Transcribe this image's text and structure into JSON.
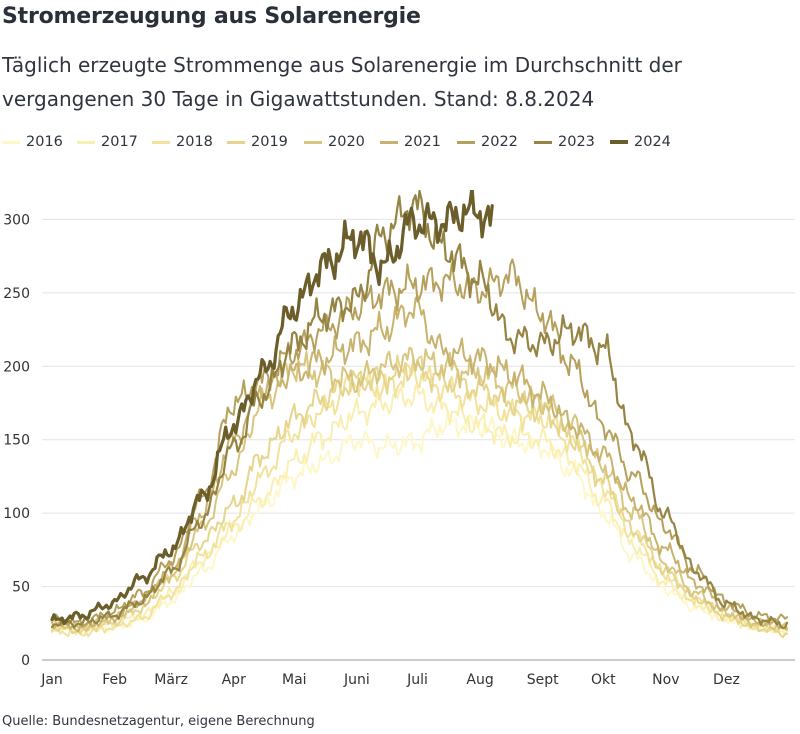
{
  "header": {
    "title": "Stromerzeugung aus Solarenergie",
    "subtitle": "Täglich erzeugte Strommenge aus Solarenergie im Durchschnitt der vergangenen 30 Tage in Gigawattstunden. Stand: 8.8.2024"
  },
  "footer": {
    "source": "Quelle: Bundesnetzagentur, eigene Berechnung"
  },
  "chart_data": {
    "type": "line",
    "title": "Stromerzeugung aus Solarenergie",
    "subtitle": "Täglich erzeugte Strommenge aus Solarenergie im Durchschnitt der vergangenen 30 Tage in Gigawattstunden. Stand: 8.8.2024",
    "xlabel": "",
    "ylabel": "",
    "xlim": [
      1,
      365
    ],
    "ylim": [
      0,
      320
    ],
    "yticks": [
      0,
      50,
      100,
      150,
      200,
      250,
      300
    ],
    "x_ticks": [
      {
        "label": "Jan",
        "day": 1
      },
      {
        "label": "Feb",
        "day": 32
      },
      {
        "label": "März",
        "day": 60
      },
      {
        "label": "Apr",
        "day": 91
      },
      {
        "label": "Mai",
        "day": 121
      },
      {
        "label": "Juni",
        "day": 152
      },
      {
        "label": "Juli",
        "day": 182
      },
      {
        "label": "Aug",
        "day": 213
      },
      {
        "label": "Sept",
        "day": 244
      },
      {
        "label": "Okt",
        "day": 274
      },
      {
        "label": "Nov",
        "day": 305
      },
      {
        "label": "Dez",
        "day": 335
      }
    ],
    "grid": "horizontal",
    "legend_position": "top",
    "x_unit": "day of year",
    "series": [
      {
        "name": "2016",
        "color": "#fdf7c9",
        "width": 2,
        "points": [
          [
            1,
            25
          ],
          [
            15,
            20
          ],
          [
            30,
            22
          ],
          [
            45,
            27
          ],
          [
            60,
            40
          ],
          [
            75,
            60
          ],
          [
            91,
            85
          ],
          [
            105,
            105
          ],
          [
            121,
            125
          ],
          [
            135,
            135
          ],
          [
            152,
            150
          ],
          [
            165,
            145
          ],
          [
            180,
            148
          ],
          [
            195,
            160
          ],
          [
            213,
            160
          ],
          [
            228,
            150
          ],
          [
            244,
            145
          ],
          [
            259,
            128
          ],
          [
            274,
            100
          ],
          [
            289,
            70
          ],
          [
            305,
            48
          ],
          [
            320,
            35
          ],
          [
            335,
            28
          ],
          [
            350,
            22
          ],
          [
            365,
            20
          ]
        ]
      },
      {
        "name": "2017",
        "color": "#faefb2",
        "width": 2,
        "points": [
          [
            1,
            22
          ],
          [
            15,
            20
          ],
          [
            30,
            24
          ],
          [
            45,
            30
          ],
          [
            60,
            45
          ],
          [
            75,
            68
          ],
          [
            91,
            90
          ],
          [
            105,
            110
          ],
          [
            121,
            135
          ],
          [
            135,
            152
          ],
          [
            152,
            168
          ],
          [
            165,
            175
          ],
          [
            180,
            180
          ],
          [
            195,
            172
          ],
          [
            213,
            160
          ],
          [
            228,
            152
          ],
          [
            244,
            150
          ],
          [
            259,
            135
          ],
          [
            274,
            108
          ],
          [
            289,
            78
          ],
          [
            305,
            52
          ],
          [
            320,
            38
          ],
          [
            335,
            28
          ],
          [
            350,
            22
          ],
          [
            365,
            20
          ]
        ]
      },
      {
        "name": "2018",
        "color": "#f2e29c",
        "width": 2,
        "points": [
          [
            1,
            20
          ],
          [
            15,
            18
          ],
          [
            30,
            22
          ],
          [
            45,
            28
          ],
          [
            60,
            45
          ],
          [
            75,
            70
          ],
          [
            91,
            95
          ],
          [
            105,
            125
          ],
          [
            121,
            155
          ],
          [
            135,
            170
          ],
          [
            152,
            190
          ],
          [
            165,
            185
          ],
          [
            180,
            195
          ],
          [
            195,
            185
          ],
          [
            213,
            175
          ],
          [
            228,
            168
          ],
          [
            244,
            165
          ],
          [
            259,
            148
          ],
          [
            274,
            118
          ],
          [
            289,
            85
          ],
          [
            305,
            58
          ],
          [
            320,
            40
          ],
          [
            335,
            30
          ],
          [
            350,
            23
          ],
          [
            365,
            20
          ]
        ]
      },
      {
        "name": "2019",
        "color": "#e6d58c",
        "width": 2,
        "points": [
          [
            1,
            22
          ],
          [
            15,
            20
          ],
          [
            30,
            25
          ],
          [
            45,
            35
          ],
          [
            60,
            55
          ],
          [
            75,
            80
          ],
          [
            91,
            105
          ],
          [
            105,
            140
          ],
          [
            121,
            165
          ],
          [
            135,
            178
          ],
          [
            152,
            190
          ],
          [
            165,
            192
          ],
          [
            180,
            200
          ],
          [
            195,
            190
          ],
          [
            213,
            185
          ],
          [
            228,
            175
          ],
          [
            244,
            170
          ],
          [
            259,
            150
          ],
          [
            274,
            122
          ],
          [
            289,
            88
          ],
          [
            305,
            60
          ],
          [
            320,
            42
          ],
          [
            335,
            30
          ],
          [
            350,
            22
          ],
          [
            365,
            18
          ]
        ]
      },
      {
        "name": "2020",
        "color": "#d8c57e",
        "width": 2,
        "points": [
          [
            1,
            25
          ],
          [
            15,
            22
          ],
          [
            30,
            28
          ],
          [
            45,
            38
          ],
          [
            60,
            58
          ],
          [
            75,
            90
          ],
          [
            91,
            130
          ],
          [
            105,
            175
          ],
          [
            121,
            200
          ],
          [
            135,
            195
          ],
          [
            152,
            190
          ],
          [
            165,
            200
          ],
          [
            180,
            205
          ],
          [
            195,
            200
          ],
          [
            213,
            195
          ],
          [
            228,
            185
          ],
          [
            244,
            175
          ],
          [
            259,
            160
          ],
          [
            274,
            132
          ],
          [
            289,
            100
          ],
          [
            305,
            65
          ],
          [
            320,
            45
          ],
          [
            335,
            32
          ],
          [
            350,
            25
          ],
          [
            365,
            22
          ]
        ]
      },
      {
        "name": "2021",
        "color": "#c8b36e",
        "width": 2,
        "points": [
          [
            1,
            25
          ],
          [
            15,
            22
          ],
          [
            30,
            28
          ],
          [
            45,
            40
          ],
          [
            60,
            62
          ],
          [
            75,
            100
          ],
          [
            91,
            150
          ],
          [
            105,
            185
          ],
          [
            121,
            195
          ],
          [
            135,
            205
          ],
          [
            152,
            215
          ],
          [
            165,
            225
          ],
          [
            180,
            240
          ],
          [
            195,
            210
          ],
          [
            213,
            205
          ],
          [
            228,
            195
          ],
          [
            244,
            180
          ],
          [
            259,
            160
          ],
          [
            274,
            140
          ],
          [
            289,
            108
          ],
          [
            305,
            75
          ],
          [
            320,
            52
          ],
          [
            335,
            35
          ],
          [
            350,
            26
          ],
          [
            365,
            23
          ]
        ]
      },
      {
        "name": "2022",
        "color": "#b5a05c",
        "width": 2,
        "points": [
          [
            1,
            28
          ],
          [
            15,
            25
          ],
          [
            30,
            32
          ],
          [
            45,
            45
          ],
          [
            60,
            68
          ],
          [
            75,
            110
          ],
          [
            91,
            175
          ],
          [
            105,
            190
          ],
          [
            121,
            210
          ],
          [
            135,
            225
          ],
          [
            152,
            240
          ],
          [
            165,
            250
          ],
          [
            180,
            255
          ],
          [
            195,
            258
          ],
          [
            213,
            252
          ],
          [
            228,
            262
          ],
          [
            244,
            235
          ],
          [
            259,
            200
          ],
          [
            274,
            160
          ],
          [
            289,
            125
          ],
          [
            305,
            90
          ],
          [
            320,
            60
          ],
          [
            335,
            40
          ],
          [
            350,
            30
          ],
          [
            365,
            28
          ]
        ]
      },
      {
        "name": "2023",
        "color": "#958443",
        "width": 2.2,
        "points": [
          [
            1,
            25
          ],
          [
            15,
            25
          ],
          [
            30,
            30
          ],
          [
            45,
            40
          ],
          [
            60,
            60
          ],
          [
            75,
            95
          ],
          [
            91,
            145
          ],
          [
            105,
            180
          ],
          [
            121,
            215
          ],
          [
            135,
            235
          ],
          [
            152,
            245
          ],
          [
            165,
            290
          ],
          [
            180,
            310
          ],
          [
            195,
            280
          ],
          [
            213,
            258
          ],
          [
            228,
            220
          ],
          [
            244,
            215
          ],
          [
            259,
            225
          ],
          [
            274,
            212
          ],
          [
            289,
            150
          ],
          [
            305,
            98
          ],
          [
            320,
            60
          ],
          [
            335,
            38
          ],
          [
            350,
            28
          ],
          [
            365,
            24
          ]
        ]
      },
      {
        "name": "2024",
        "color": "#6b5e2a",
        "width": 3.2,
        "points": [
          [
            1,
            27
          ],
          [
            15,
            30
          ],
          [
            30,
            38
          ],
          [
            45,
            55
          ],
          [
            60,
            75
          ],
          [
            75,
            110
          ],
          [
            91,
            160
          ],
          [
            105,
            195
          ],
          [
            121,
            240
          ],
          [
            135,
            268
          ],
          [
            152,
            288
          ],
          [
            165,
            268
          ],
          [
            180,
            298
          ],
          [
            195,
            298
          ],
          [
            205,
            305
          ],
          [
            213,
            305
          ],
          [
            219,
            298
          ]
        ]
      }
    ]
  }
}
